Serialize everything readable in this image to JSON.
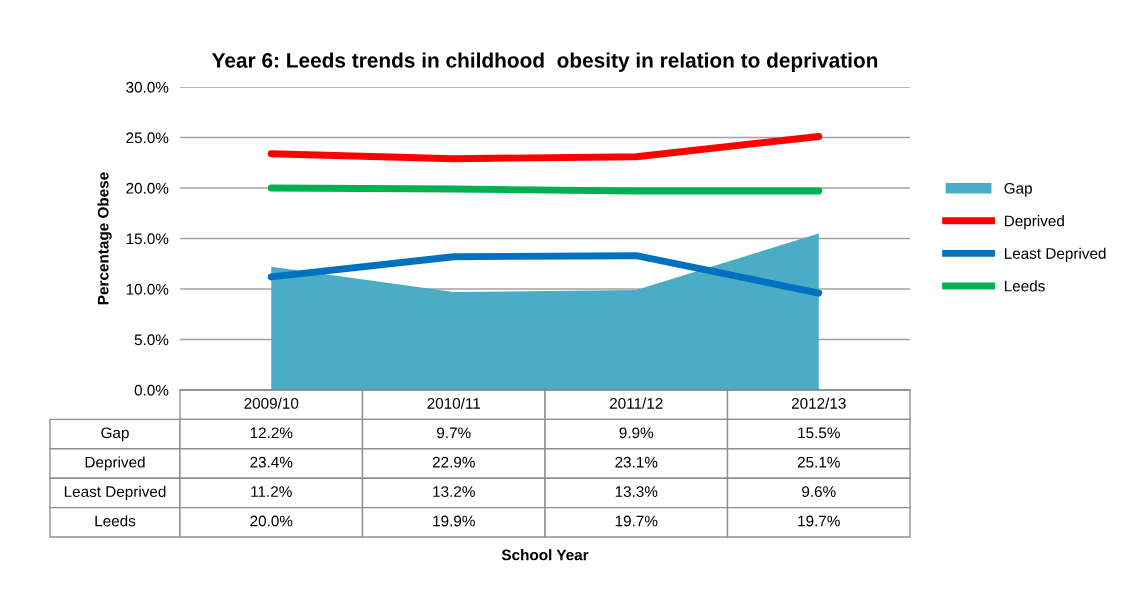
{
  "chart_data": {
    "type": "line",
    "title": "Year 6: Leeds trends in childhood  obesity in relation to deprivation",
    "annotations": [
      "School Year"
    ],
    "ylabel": "Percentage Obese",
    "categories": [
      "2009/10",
      "2010/11",
      "2011/12",
      "2012/13"
    ],
    "series": [
      {
        "name": "Gap",
        "type": "area",
        "color": "#4bacc6",
        "values": [
          12.2,
          9.7,
          9.9,
          15.5
        ],
        "value_labels": [
          "12.2%",
          "9.7%",
          "9.9%",
          "15.5%"
        ]
      },
      {
        "name": "Deprived",
        "color": "#ff0000",
        "values": [
          23.4,
          22.9,
          23.1,
          25.1
        ],
        "value_labels": [
          "23.4%",
          "22.9%",
          "23.1%",
          "25.1%"
        ]
      },
      {
        "name": "Least Deprived",
        "color": "#0070c0",
        "values": [
          11.2,
          13.2,
          13.3,
          9.6
        ],
        "value_labels": [
          "11.2%",
          "13.2%",
          "13.3%",
          "9.6%"
        ]
      },
      {
        "name": "Leeds",
        "color": "#00b050",
        "values": [
          20.0,
          19.9,
          19.7,
          19.7
        ],
        "value_labels": [
          "20.0%",
          "19.9%",
          "19.7%",
          "19.7%"
        ]
      }
    ],
    "ylim": [
      0,
      30
    ],
    "yticks": [
      {
        "value": 0,
        "label": "0.0%"
      },
      {
        "value": 5,
        "label": "5.0%"
      },
      {
        "value": 10,
        "label": "10.0%"
      },
      {
        "value": 15,
        "label": "15.0%"
      },
      {
        "value": 20,
        "label": "20.0%"
      },
      {
        "value": 25,
        "label": "25.0%"
      },
      {
        "value": 30,
        "label": "30.0%"
      }
    ],
    "grid": "y",
    "legend": "right",
    "line_style": "solid",
    "marker": "none"
  }
}
